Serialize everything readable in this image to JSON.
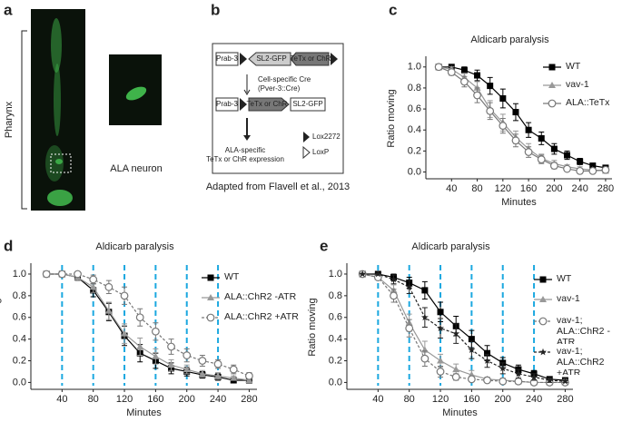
{
  "panels": {
    "a": {
      "label": "a",
      "bracket_label": "Pharynx",
      "inset_label": "ALA neuron"
    },
    "b": {
      "label": "b",
      "promoter_top": "Prab-3",
      "cassette_top_1": "SL2-GFP",
      "cassette_top_2": "TeTx or ChR",
      "step_1": "Cell-specific Cre",
      "step_1_detail": "(Pver-3::Cre)",
      "promoter_bottom": "Prab-3",
      "cassette_bottom_1": "TeTx or ChR",
      "cassette_bottom_2": "SL2-GFP",
      "step_2_line_1": "ALA-specific",
      "step_2_line_2": "TeTx or ChR expression",
      "key_1": "Lox2272",
      "key_2": "LoxP",
      "caption": "Adapted from Flavell et al., 2013"
    }
  },
  "chart_data": [
    {
      "type": "line",
      "panel_label": "c",
      "title": "Aldicarb paralysis",
      "xlabel": "Minutes",
      "ylabel": "Ratio moving",
      "x": [
        20,
        40,
        60,
        80,
        100,
        120,
        140,
        160,
        180,
        200,
        220,
        240,
        260,
        280
      ],
      "xlim": [
        0,
        290
      ],
      "xticks": [
        40,
        80,
        120,
        160,
        200,
        240,
        280
      ],
      "ylim": [
        -0.03,
        1.05
      ],
      "yticks": [
        {
          "value": 0,
          "label": "0.0"
        },
        0.2,
        0.4,
        0.6,
        0.8,
        {
          "value": 1,
          "label": "1.0"
        }
      ],
      "series": [
        {
          "name": "WT",
          "color": "#000000",
          "marker": "square",
          "dashed": false,
          "values": [
            1.0,
            1.0,
            0.97,
            0.92,
            0.82,
            0.7,
            0.57,
            0.4,
            0.32,
            0.22,
            0.16,
            0.1,
            0.06,
            0.04
          ],
          "errors": [
            0,
            0.01,
            0.03,
            0.05,
            0.08,
            0.09,
            0.08,
            0.07,
            0.06,
            0.05,
            0.04,
            0.03,
            0.02,
            0.02
          ]
        },
        {
          "name": "vav-1",
          "color": "#999999",
          "marker": "triangle",
          "dashed": false,
          "values": [
            1.0,
            0.98,
            0.9,
            0.8,
            0.6,
            0.47,
            0.33,
            0.22,
            0.13,
            0.08,
            0.05,
            0.03,
            0.02,
            0.01
          ],
          "errors": [
            0,
            0.02,
            0.04,
            0.06,
            0.08,
            0.08,
            0.06,
            0.05,
            0.04,
            0.03,
            0.02,
            0.02,
            0.01,
            0.01
          ]
        },
        {
          "name": "ALA::TeTx",
          "color": "#777777",
          "marker": "circle",
          "dashed": false,
          "values": [
            1.0,
            0.95,
            0.86,
            0.73,
            0.58,
            0.44,
            0.3,
            0.19,
            0.12,
            0.06,
            0.03,
            0.01,
            0.01,
            0.02
          ],
          "errors": [
            0,
            0.03,
            0.05,
            0.07,
            0.08,
            0.07,
            0.06,
            0.05,
            0.04,
            0.03,
            0.02,
            0.01,
            0.01,
            0.01
          ]
        }
      ]
    },
    {
      "type": "line",
      "panel_label": "d",
      "title": "Aldicarb paralysis",
      "xlabel": "Minutes",
      "ylabel": "Ratio moving",
      "x": [
        20,
        40,
        60,
        80,
        100,
        120,
        140,
        160,
        180,
        200,
        220,
        240,
        260,
        280
      ],
      "xlim": [
        0,
        290
      ],
      "xticks": [
        40,
        80,
        120,
        160,
        200,
        240,
        280
      ],
      "ylim": [
        -0.03,
        1.05
      ],
      "yticks": [
        {
          "value": 0,
          "label": "0.0"
        },
        0.2,
        0.4,
        0.6,
        0.8,
        {
          "value": 1,
          "label": "1.0"
        }
      ],
      "stimulus_lines": [
        40,
        80,
        120,
        160,
        200,
        240
      ],
      "stimulus_color": "#1ba8e0",
      "series": [
        {
          "name": "WT",
          "color": "#000000",
          "marker": "square",
          "dashed": false,
          "values": [
            1.0,
            1.0,
            0.97,
            0.85,
            0.65,
            0.43,
            0.27,
            0.2,
            0.13,
            0.1,
            0.07,
            0.05,
            0.02,
            0.02
          ],
          "errors": [
            0,
            0.01,
            0.03,
            0.06,
            0.08,
            0.09,
            0.08,
            0.07,
            0.05,
            0.04,
            0.03,
            0.03,
            0.02,
            0.02
          ]
        },
        {
          "name": "ALA::ChR2 -ATR",
          "color": "#999999",
          "marker": "triangle",
          "dashed": false,
          "values": [
            1.0,
            1.0,
            0.97,
            0.88,
            0.66,
            0.45,
            0.33,
            0.24,
            0.16,
            0.12,
            0.08,
            0.06,
            0.04,
            0.02
          ],
          "errors": [
            0,
            0.01,
            0.03,
            0.05,
            0.08,
            0.09,
            0.08,
            0.07,
            0.05,
            0.04,
            0.03,
            0.03,
            0.02,
            0.02
          ]
        },
        {
          "name": "ALA::ChR2 +ATR",
          "color": "#777777",
          "marker": "circle",
          "dashed": true,
          "values": [
            1.0,
            1.0,
            1.0,
            0.95,
            0.88,
            0.8,
            0.6,
            0.47,
            0.33,
            0.25,
            0.2,
            0.17,
            0.12,
            0.06
          ],
          "errors": [
            0,
            0.01,
            0.01,
            0.04,
            0.06,
            0.08,
            0.08,
            0.08,
            0.07,
            0.06,
            0.05,
            0.04,
            0.04,
            0.03
          ]
        }
      ]
    },
    {
      "type": "line",
      "panel_label": "e",
      "title": "Aldicarb paralysis",
      "xlabel": "Minutes",
      "ylabel": "Ratio moving",
      "x": [
        20,
        40,
        60,
        80,
        100,
        120,
        140,
        160,
        180,
        200,
        220,
        240,
        260,
        280
      ],
      "xlim": [
        0,
        290
      ],
      "xticks": [
        40,
        80,
        120,
        160,
        200,
        240,
        280
      ],
      "ylim": [
        -0.03,
        1.05
      ],
      "yticks": [
        {
          "value": 0,
          "label": "0.0"
        },
        0.2,
        0.4,
        0.6,
        0.8,
        {
          "value": 1,
          "label": "1.0"
        }
      ],
      "stimulus_lines": [
        40,
        80,
        120,
        160,
        200,
        240
      ],
      "stimulus_color": "#1ba8e0",
      "series": [
        {
          "name": "WT",
          "color": "#000000",
          "marker": "square",
          "dashed": false,
          "values": [
            1.0,
            1.0,
            0.97,
            0.92,
            0.85,
            0.65,
            0.52,
            0.4,
            0.27,
            0.18,
            0.12,
            0.08,
            0.03,
            0.02
          ],
          "errors": [
            0,
            0.01,
            0.03,
            0.05,
            0.08,
            0.09,
            0.09,
            0.08,
            0.07,
            0.05,
            0.04,
            0.03,
            0.02,
            0.02
          ]
        },
        {
          "name": "vav-1",
          "color": "#999999",
          "marker": "triangle",
          "dashed": false,
          "values": [
            1.0,
            0.97,
            0.85,
            0.55,
            0.3,
            0.2,
            0.12,
            0.07,
            0.03,
            0.02,
            0.01,
            0,
            0,
            0
          ],
          "errors": [
            0,
            0.02,
            0.05,
            0.08,
            0.08,
            0.06,
            0.05,
            0.04,
            0.02,
            0.02,
            0.01,
            0,
            0,
            0
          ]
        },
        {
          "name": "vav-1; ALA::ChR2 -ATR",
          "color": "#777777",
          "marker": "circle",
          "dashed": true,
          "values": [
            1.0,
            0.97,
            0.8,
            0.5,
            0.22,
            0.1,
            0.05,
            0.03,
            0.02,
            0.01,
            0.01,
            0,
            0,
            0
          ],
          "errors": [
            0,
            0.02,
            0.06,
            0.08,
            0.07,
            0.05,
            0.03,
            0.02,
            0.02,
            0.01,
            0.01,
            0,
            0,
            0
          ]
        },
        {
          "name": "vav-1; ALA::ChR2 +ATR",
          "color": "#222222",
          "marker": "star",
          "dashed": true,
          "values": [
            1.0,
            1.0,
            0.95,
            0.88,
            0.6,
            0.5,
            0.45,
            0.3,
            0.2,
            0.13,
            0.08,
            0.05,
            0.02,
            0.01
          ],
          "errors": [
            0,
            0.01,
            0.04,
            0.06,
            0.09,
            0.09,
            0.09,
            0.08,
            0.06,
            0.05,
            0.04,
            0.03,
            0.02,
            0.01
          ]
        }
      ]
    }
  ]
}
